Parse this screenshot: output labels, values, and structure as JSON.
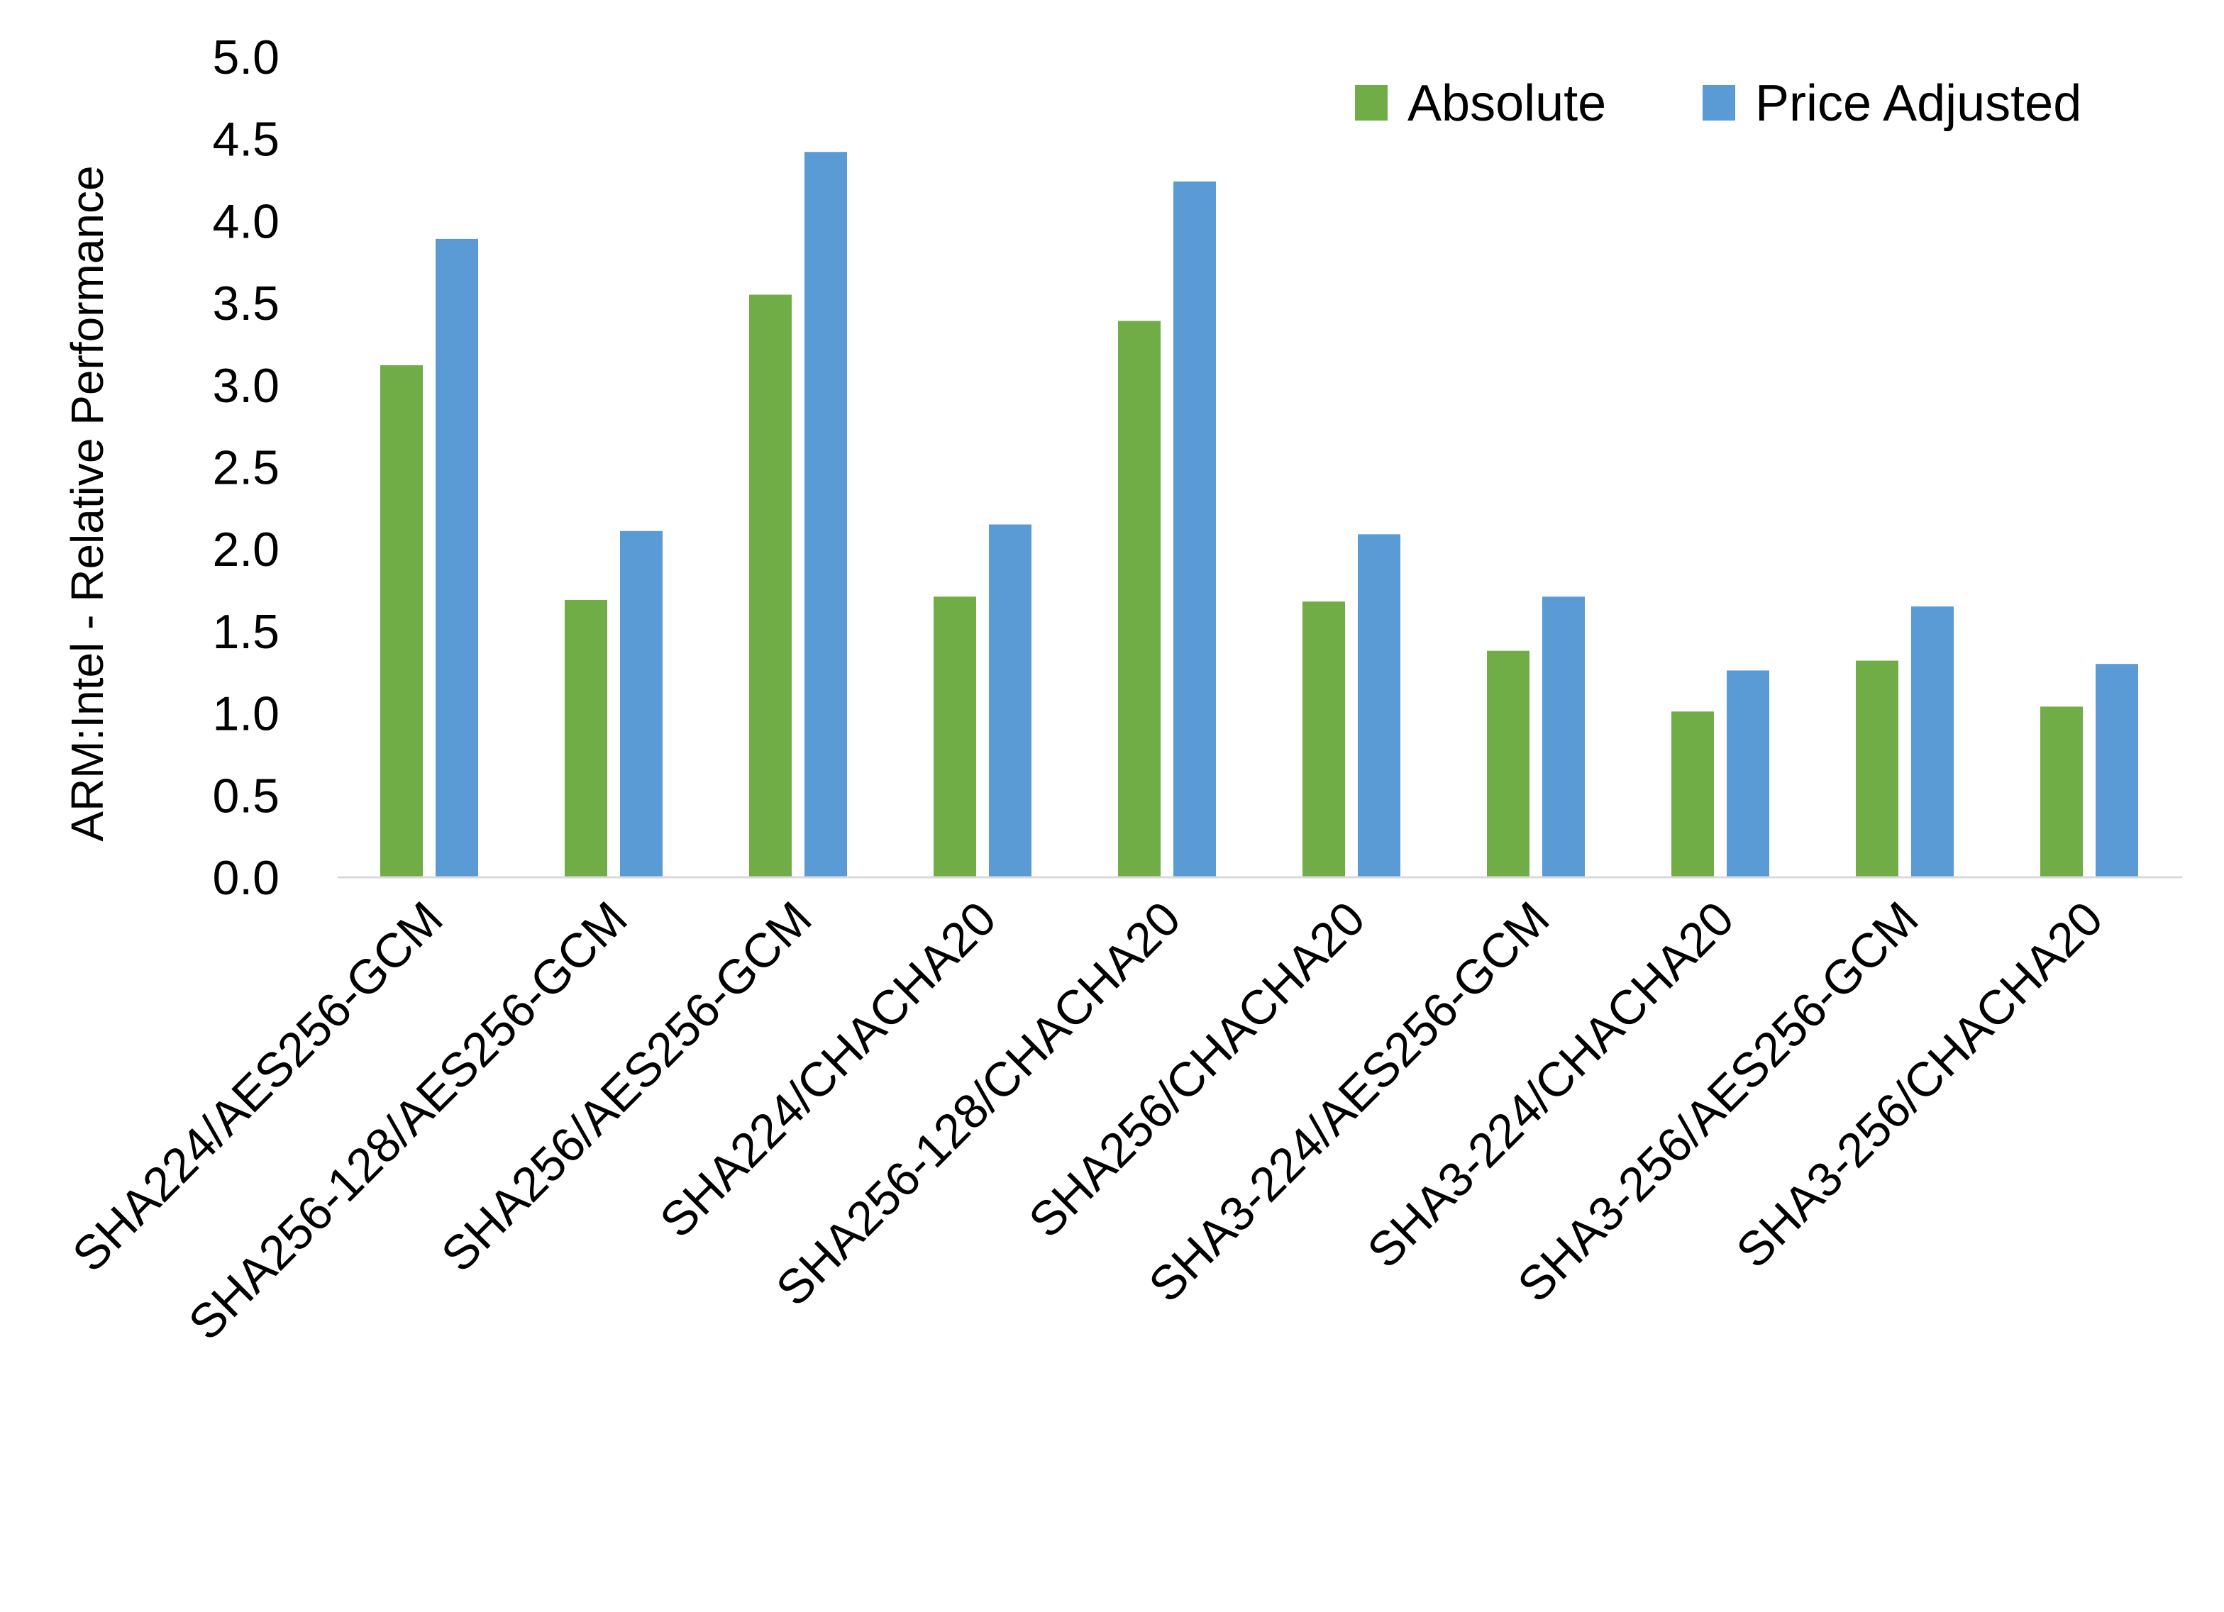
{
  "chart_data": {
    "type": "bar",
    "title": "",
    "xlabel": "",
    "ylabel": "ARM:Intel - Relative Performance",
    "ylim": [
      0,
      5
    ],
    "yticks": [
      "0.0",
      "0.5",
      "1.0",
      "1.5",
      "2.0",
      "2.5",
      "3.0",
      "3.5",
      "4.0",
      "4.5",
      "5.0"
    ],
    "grid": false,
    "legend_position": "top-right",
    "categories": [
      "SHA224/AES256-GCM",
      "SHA256-128/AES256-GCM",
      "SHA256/AES256-GCM",
      "SHA224/CHACHA20",
      "SHA256-128/CHACHA20",
      "SHA256/CHACHA20",
      "SHA3-224/AES256-GCM",
      "SHA3-224/CHACHA20",
      "SHA3-256/AES256-GCM",
      "SHA3-256/CHACHA20"
    ],
    "series": [
      {
        "name": "Absolute",
        "color": "#70ad47",
        "values": [
          3.12,
          1.69,
          3.55,
          1.71,
          3.39,
          1.68,
          1.38,
          1.01,
          1.32,
          1.04
        ]
      },
      {
        "name": "Price Adjusted",
        "color": "#5b9bd5",
        "values": [
          3.89,
          2.11,
          4.42,
          2.15,
          4.24,
          2.09,
          1.71,
          1.26,
          1.65,
          1.3
        ]
      }
    ]
  }
}
